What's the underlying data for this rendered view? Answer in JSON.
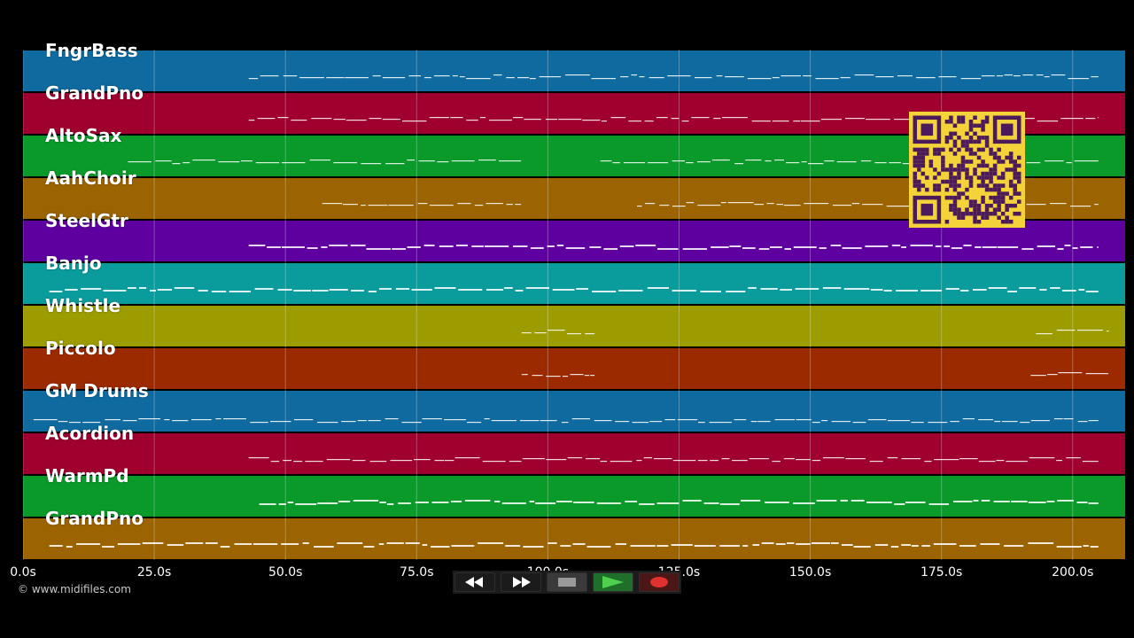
{
  "timeline": {
    "duration_max": 210,
    "ticks": [
      {
        "label": "0.0s",
        "value": 0
      },
      {
        "label": "25.0s",
        "value": 25
      },
      {
        "label": "50.0s",
        "value": 50
      },
      {
        "label": "75.0s",
        "value": 75
      },
      {
        "label": "100.0s",
        "value": 100
      },
      {
        "label": "125.0s",
        "value": 125
      },
      {
        "label": "150.0s",
        "value": 150
      },
      {
        "label": "175.0s",
        "value": 175
      },
      {
        "label": "200.0s",
        "value": 200
      }
    ]
  },
  "tracks": [
    {
      "name": "FngrBass",
      "color": "#0f6aa0"
    },
    {
      "name": "GrandPno",
      "color": "#a0002e"
    },
    {
      "name": "AltoSax",
      "color": "#0a9a2a"
    },
    {
      "name": "AahChoir",
      "color": "#9c6400"
    },
    {
      "name": "SteelGtr",
      "color": "#5e00a0"
    },
    {
      "name": "Banjo",
      "color": "#0a9c9c"
    },
    {
      "name": "Whistle",
      "color": "#9c9c00"
    },
    {
      "name": "Piccolo",
      "color": "#9c2a00"
    },
    {
      "name": "GM Drums",
      "color": "#0f6aa0"
    },
    {
      "name": "Acordion",
      "color": "#a0002e"
    },
    {
      "name": "WarmPd",
      "color": "#0a9a2a"
    },
    {
      "name": "GrandPno",
      "color": "#9c6400"
    }
  ],
  "copyright": "© www.midifiles.com",
  "transport": {
    "buttons": [
      {
        "name": "rewind-button",
        "icon": "rewind-icon",
        "color": "#2a2a2a"
      },
      {
        "name": "fast-forward-button",
        "icon": "fast-forward-icon",
        "color": "#2a2a2a"
      },
      {
        "name": "stop-button",
        "icon": "stop-icon",
        "color": "#3a3a3a"
      },
      {
        "name": "play-button",
        "icon": "play-icon",
        "color": "#1f6e2a"
      },
      {
        "name": "record-button",
        "icon": "record-icon",
        "color": "#5a1a1a"
      }
    ]
  },
  "qr_code": {
    "icon": "qr-code-icon",
    "color": "#f3d23a",
    "ink": "#4a1a5a"
  }
}
